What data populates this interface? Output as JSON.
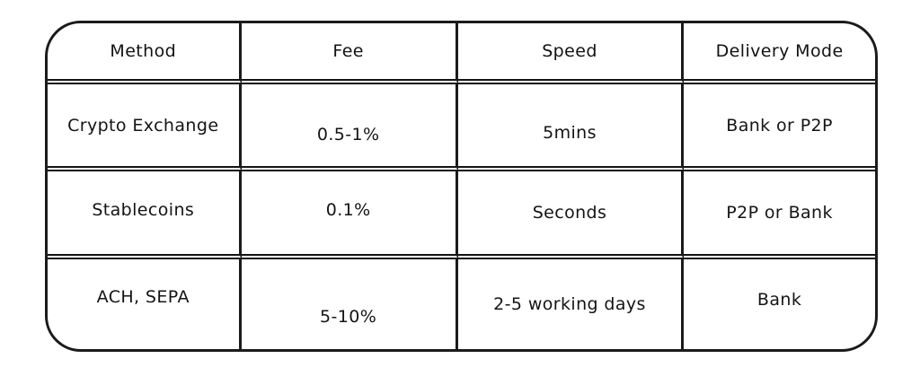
{
  "table": {
    "columns": [
      "Method",
      "Fee",
      "Speed",
      "Delivery Mode"
    ],
    "rows": [
      [
        "Crypto Exchange",
        "0.5-1%",
        "5mins",
        "Bank or P2P"
      ],
      [
        "Stablecoins",
        "0.1%",
        "Seconds",
        "P2P or Bank"
      ],
      [
        "ACH, SEPA",
        "5-10%",
        "2-5 working days",
        "Bank"
      ]
    ],
    "stroke_color": "#1b1b1b",
    "background_color": "#ffffff"
  }
}
